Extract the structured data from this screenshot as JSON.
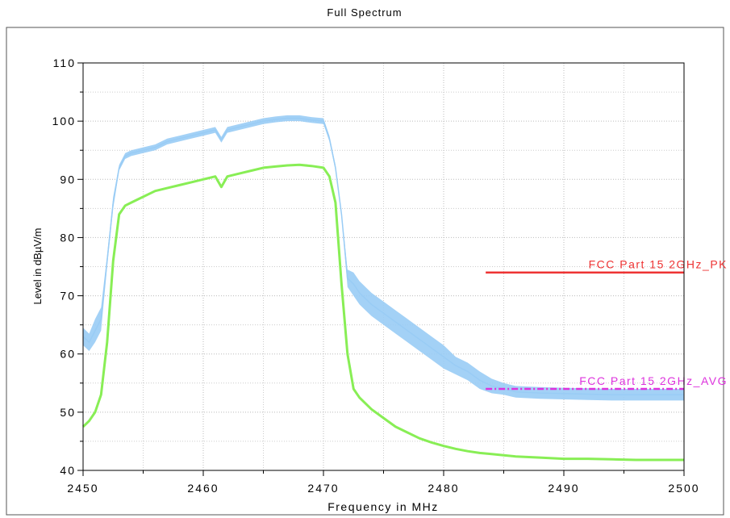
{
  "chart_data": {
    "type": "line",
    "title": "Full Spectrum",
    "xlabel": "Frequency in MHz",
    "ylabel": "Level in dBµV/m",
    "xlim": [
      2450,
      2500
    ],
    "ylim": [
      40,
      110
    ],
    "x_ticks": [
      2450,
      2460,
      2470,
      2480,
      2490,
      2500
    ],
    "y_ticks": [
      40,
      50,
      60,
      70,
      80,
      90,
      100,
      110
    ],
    "grid": true,
    "series": [
      {
        "role": "peak-trace",
        "color": "#99ccf5",
        "x": [
          2450,
          2450.5,
          2451,
          2451.5,
          2452,
          2452.5,
          2453,
          2453.5,
          2454,
          2455,
          2456,
          2457,
          2458,
          2459,
          2460,
          2461,
          2461.5,
          2462,
          2463,
          2464,
          2465,
          2466,
          2467,
          2468,
          2469,
          2470,
          2470.5,
          2471,
          2471.5,
          2472,
          2472.5,
          2473,
          2474,
          2475,
          2476,
          2477,
          2478,
          2479,
          2480,
          2481,
          2482,
          2483,
          2484,
          2485,
          2486,
          2488,
          2490,
          2492,
          2494,
          2496,
          2498,
          2500
        ],
        "y": [
          63,
          62,
          64,
          66,
          76,
          86,
          92,
          94,
          94.5,
          95,
          95.5,
          96.5,
          97,
          97.5,
          98,
          98.5,
          96.8,
          98.5,
          99,
          99.5,
          100,
          100.3,
          100.5,
          100.5,
          100.2,
          100,
          97,
          92,
          84,
          73,
          72,
          70.5,
          68.5,
          67,
          65.5,
          64,
          62.5,
          61,
          59.5,
          58,
          57,
          55.5,
          54.5,
          54,
          53.5,
          53.3,
          53.2,
          53.1,
          53,
          53,
          53,
          53
        ],
        "band": [
          3,
          3,
          4,
          4,
          2,
          2,
          1,
          1,
          1,
          1,
          1,
          1,
          1,
          1,
          1,
          1,
          1,
          1,
          1,
          1,
          1,
          1,
          1,
          1,
          1,
          1,
          1,
          1,
          1,
          3,
          4,
          4,
          4,
          4,
          4,
          4,
          4,
          4,
          4,
          3,
          3,
          3,
          2.5,
          2,
          2,
          2,
          2,
          2,
          2,
          2,
          2,
          2
        ]
      },
      {
        "role": "average-trace",
        "color": "#88ee55",
        "x": [
          2450,
          2450.5,
          2451,
          2451.5,
          2452,
          2452.5,
          2453,
          2453.5,
          2454,
          2455,
          2456,
          2457,
          2458,
          2459,
          2460,
          2461,
          2461.5,
          2462,
          2463,
          2464,
          2465,
          2466,
          2467,
          2468,
          2469,
          2470,
          2470.5,
          2471,
          2471.5,
          2472,
          2472.5,
          2473,
          2474,
          2475,
          2476,
          2477,
          2478,
          2479,
          2480,
          2481,
          2482,
          2483,
          2484,
          2485,
          2486,
          2488,
          2490,
          2492,
          2494,
          2496,
          2498,
          2500
        ],
        "y": [
          47.5,
          48.5,
          50,
          53,
          62,
          76,
          84,
          85.5,
          86,
          87,
          88,
          88.5,
          89,
          89.5,
          90,
          90.5,
          88.7,
          90.5,
          91,
          91.5,
          92,
          92.2,
          92.4,
          92.5,
          92.3,
          92,
          90.5,
          86,
          72,
          60,
          54,
          52.5,
          50.5,
          49,
          47.5,
          46.5,
          45.5,
          44.8,
          44.2,
          43.7,
          43.3,
          43,
          42.8,
          42.6,
          42.4,
          42.2,
          42,
          42,
          41.9,
          41.8,
          41.8,
          41.8
        ]
      }
    ],
    "limit_lines": [
      {
        "label": "FCC Part 15 2GHz_PK",
        "x_start": 2483.5,
        "x_end": 2500,
        "y": 74,
        "color": "#ee3333",
        "style": "solid"
      },
      {
        "label": "FCC Part 15 2GHz_AVG",
        "x_start": 2483.5,
        "x_end": 2500,
        "y": 54,
        "color": "#dd33dd",
        "style": "dash-dot"
      }
    ]
  }
}
